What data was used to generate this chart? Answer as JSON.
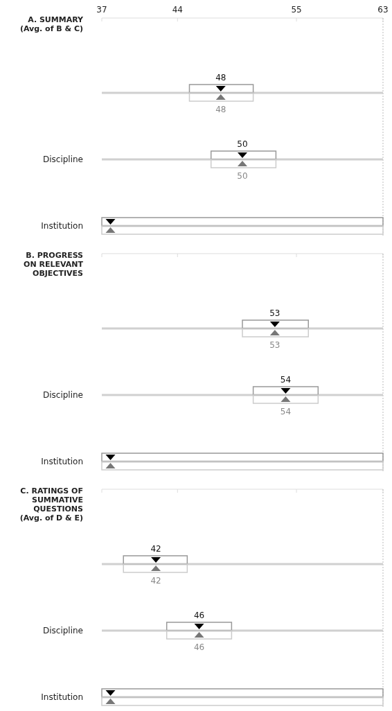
{
  "chart_data": [
    {
      "type": "bar",
      "orientation": "horizontal",
      "title": "A. SUMMARY\n(Avg. of B & C)",
      "categories": [
        null,
        "Discipline",
        "Institution"
      ],
      "xlim": [
        37,
        63
      ],
      "xticks": [
        37,
        44,
        55,
        63
      ],
      "grid": "y",
      "marker": "triangle",
      "ref_lines": [
        {
          "axis": "x",
          "value": 63,
          "line_style": "dotted",
          "color": "#bbbbbb"
        }
      ],
      "series": [
        {
          "type": "bar",
          "color": "#999999",
          "base": [
            45.1,
            47.1,
            37
          ],
          "values": [
            5.9,
            6,
            26
          ]
        },
        {
          "type": "bar",
          "color": "#cccccc",
          "base": [
            45.1,
            47.1,
            37
          ],
          "values": [
            5.9,
            6,
            26
          ]
        },
        {
          "type": "scatter",
          "color": "#000000",
          "values": [
            48,
            50,
            37.8
          ],
          "value_labels": [
            "48",
            "50",
            null
          ]
        },
        {
          "type": "scatter",
          "color": "#777777",
          "values": [
            48,
            50,
            37.8
          ],
          "value_labels": [
            "48",
            "50",
            null
          ]
        }
      ]
    },
    {
      "type": "bar",
      "orientation": "horizontal",
      "title": "B. PROGRESS\nON RELEVANT\nOBJECTIVES",
      "categories": [
        null,
        "Discipline",
        "Institution"
      ],
      "xlim": [
        37,
        63
      ],
      "xticks": [
        37,
        44,
        55,
        63
      ],
      "tick_labels": "y",
      "grid": "y",
      "marker": "triangle",
      "ref_lines": [
        {
          "axis": "x",
          "value": 63,
          "line_style": "dotted",
          "color": "#bbbbbb"
        }
      ],
      "series": [
        {
          "type": "bar",
          "color": "#999999",
          "base": [
            50,
            51,
            37
          ],
          "values": [
            6.1,
            6,
            26
          ]
        },
        {
          "type": "bar",
          "color": "#cccccc",
          "base": [
            50,
            51,
            37
          ],
          "values": [
            6.1,
            6,
            26
          ]
        },
        {
          "type": "scatter",
          "color": "#000000",
          "values": [
            53,
            54,
            37.8
          ],
          "value_labels": [
            "53",
            "54",
            null
          ]
        },
        {
          "type": "scatter",
          "color": "#777777",
          "values": [
            53,
            54,
            37.8
          ],
          "value_labels": [
            "53",
            "54",
            null
          ]
        }
      ]
    },
    {
      "type": "bar",
      "orientation": "horizontal",
      "title": "C. RATINGS OF\nSUMMATIVE\nQUESTIONS\n(Avg. of D & E)",
      "categories": [
        null,
        "Discipline",
        "Institution"
      ],
      "xlim": [
        37,
        63
      ],
      "xticks": [
        37,
        44,
        55,
        63
      ],
      "tick_labels": "y",
      "grid": "y",
      "marker": "triangle",
      "ref_lines": [
        {
          "axis": "x",
          "value": 63,
          "line_style": "dotted",
          "color": "#bbbbbb"
        }
      ],
      "series": [
        {
          "type": "bar",
          "color": "#999999",
          "base": [
            39,
            43,
            37
          ],
          "values": [
            5.9,
            6,
            26
          ]
        },
        {
          "type": "bar",
          "color": "#cccccc",
          "base": [
            39,
            43,
            37
          ],
          "values": [
            5.9,
            6,
            26
          ]
        },
        {
          "type": "scatter",
          "color": "#000000",
          "values": [
            42,
            46,
            37.8
          ],
          "value_labels": [
            "42",
            "46",
            null
          ]
        },
        {
          "type": "scatter",
          "color": "#777777",
          "values": [
            42,
            46,
            37.8
          ],
          "value_labels": [
            "42",
            "46",
            null
          ]
        }
      ]
    }
  ]
}
